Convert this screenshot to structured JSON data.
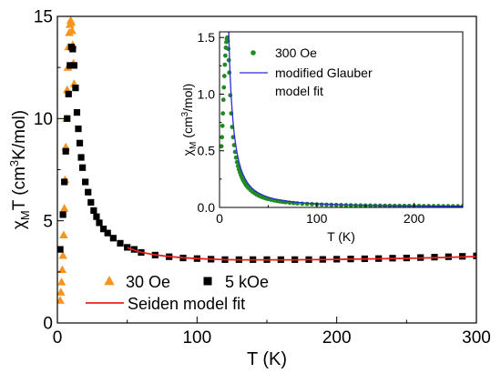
{
  "chart_data": [
    {
      "type": "scatter",
      "role": "main",
      "xlabel": "T (K)",
      "ylabel_parts": {
        "pre": "χ",
        "sub": "M",
        "mid": "T (cm",
        "sup": "3",
        "post": "K/mol)"
      },
      "xlim": [
        0,
        300
      ],
      "ylim": [
        0,
        15
      ],
      "xticks": [
        0,
        100,
        200,
        300
      ],
      "yticks": [
        0,
        5,
        10,
        15
      ],
      "grid": false,
      "legend_position": "bottom-left",
      "series": [
        {
          "name": "30 Oe",
          "marker": "triangle",
          "color": "#f7941d",
          "x": [
            2.0,
            2.5,
            3.0,
            3.5,
            4.0,
            4.5,
            5.0,
            5.5,
            6.0,
            6.5,
            7.0,
            7.5,
            8.0,
            8.5,
            9.0,
            9.5,
            10.0,
            10.5,
            11.0,
            11.5,
            12.0
          ],
          "y": [
            1.1,
            1.5,
            2.0,
            2.6,
            3.3,
            4.3,
            5.6,
            7.0,
            8.6,
            10.0,
            11.4,
            12.5,
            13.5,
            14.2,
            14.6,
            14.8,
            14.7,
            14.3,
            13.6,
            12.7,
            11.7
          ]
        },
        {
          "name": "5 kOe",
          "marker": "square",
          "color": "#000000",
          "x": [
            2,
            4,
            5,
            6,
            7,
            8,
            9,
            10,
            11,
            12,
            13,
            14,
            15,
            16,
            17,
            18,
            20,
            22,
            24,
            26,
            28,
            30,
            33,
            36,
            40,
            45,
            50,
            55,
            60,
            70,
            80,
            90,
            100,
            110,
            120,
            130,
            140,
            150,
            160,
            170,
            180,
            190,
            200,
            210,
            220,
            230,
            240,
            250,
            260,
            270,
            280,
            290,
            300
          ],
          "y": [
            3.6,
            5.3,
            6.9,
            8.4,
            10.0,
            11.2,
            12.6,
            13.5,
            13.4,
            12.6,
            11.5,
            10.3,
            9.5,
            8.8,
            8.1,
            7.6,
            6.9,
            6.4,
            5.9,
            5.5,
            5.2,
            4.9,
            4.6,
            4.4,
            4.15,
            3.9,
            3.7,
            3.6,
            3.45,
            3.32,
            3.24,
            3.18,
            3.15,
            3.12,
            3.1,
            3.1,
            3.1,
            3.1,
            3.1,
            3.1,
            3.1,
            3.11,
            3.12,
            3.13,
            3.14,
            3.15,
            3.17,
            3.18,
            3.2,
            3.22,
            3.24,
            3.26,
            3.28
          ]
        },
        {
          "name": "Seiden model fit",
          "marker": "line",
          "color": "#e8201c",
          "x": [
            50,
            60,
            70,
            80,
            90,
            100,
            110,
            120,
            130,
            140,
            150,
            160,
            170,
            180,
            190,
            200,
            210,
            220,
            230,
            240,
            250,
            260,
            270,
            280,
            290,
            300
          ],
          "y": [
            3.68,
            3.46,
            3.33,
            3.25,
            3.19,
            3.15,
            3.12,
            3.1,
            3.09,
            3.09,
            3.09,
            3.09,
            3.09,
            3.1,
            3.1,
            3.11,
            3.12,
            3.13,
            3.14,
            3.15,
            3.16,
            3.18,
            3.19,
            3.21,
            3.23,
            3.25
          ]
        }
      ]
    },
    {
      "type": "scatter",
      "role": "inset",
      "xlabel": "T (K)",
      "ylabel_parts": {
        "pre": "χ",
        "sub": "M",
        "mid": " (cm",
        "sup": "3",
        "post": "/mol)"
      },
      "xlim": [
        0,
        250
      ],
      "ylim": [
        0,
        1.55
      ],
      "xticks": [
        0,
        100,
        200
      ],
      "yticks": [
        0.0,
        0.5,
        1.0,
        1.5
      ],
      "ytick_labels": [
        "0.0",
        "0.5",
        "1.0",
        "1.5"
      ],
      "grid": false,
      "legend_position": "top-right",
      "series": [
        {
          "name": "300 Oe",
          "marker": "circle",
          "color": "#1e8c1e",
          "x": [
            2,
            2.5,
            3,
            3.5,
            4,
            4.5,
            5,
            5.5,
            6,
            6.5,
            7,
            7.5,
            8,
            8.5,
            9,
            9.5,
            10,
            11,
            12,
            13,
            14,
            15,
            16,
            17,
            18,
            19,
            20,
            21,
            22,
            23,
            24,
            25,
            26,
            27,
            28,
            29,
            30,
            32,
            34,
            36,
            38,
            40,
            42,
            44,
            46,
            48,
            50,
            53,
            56,
            59,
            62,
            65,
            68,
            72,
            76,
            80,
            85,
            90,
            95,
            100,
            105,
            110,
            115,
            120,
            125,
            130,
            135,
            140,
            145,
            150,
            155,
            160,
            165,
            170,
            175,
            180,
            185,
            190,
            195,
            200,
            205,
            210,
            215,
            220,
            225,
            230,
            235,
            240,
            245,
            250
          ],
          "y": [
            0.54,
            0.62,
            0.72,
            0.83,
            0.95,
            1.06,
            1.16,
            1.26,
            1.34,
            1.41,
            1.46,
            1.49,
            1.5,
            1.47,
            1.4,
            1.3,
            1.19,
            0.99,
            0.83,
            0.71,
            0.62,
            0.55,
            0.49,
            0.44,
            0.4,
            0.365,
            0.335,
            0.31,
            0.285,
            0.265,
            0.245,
            0.23,
            0.215,
            0.2,
            0.19,
            0.18,
            0.17,
            0.152,
            0.138,
            0.126,
            0.115,
            0.106,
            0.098,
            0.091,
            0.085,
            0.079,
            0.074,
            0.068,
            0.062,
            0.057,
            0.053,
            0.049,
            0.046,
            0.042,
            0.039,
            0.036,
            0.033,
            0.031,
            0.029,
            0.027,
            0.025,
            0.024,
            0.023,
            0.022,
            0.021,
            0.02,
            0.019,
            0.018,
            0.0175,
            0.017,
            0.0165,
            0.016,
            0.0155,
            0.015,
            0.0145,
            0.014,
            0.0137,
            0.0134,
            0.0131,
            0.0128,
            0.0125,
            0.0122,
            0.012,
            0.0117,
            0.0115,
            0.0112,
            0.011,
            0.0108,
            0.0106,
            0.0104
          ]
        },
        {
          "name": "modified Glauber model fit",
          "legend_lines": [
            "modified Glauber",
            "model fit"
          ],
          "marker": "line",
          "color": "#2b2bd6",
          "x": [
            9.4,
            9.7,
            10,
            10.5,
            11,
            12,
            13,
            14,
            15,
            16,
            18,
            20,
            22,
            24,
            26,
            28,
            30,
            33,
            36,
            40,
            45,
            50,
            55,
            60,
            70,
            80,
            90,
            100,
            120,
            140,
            160,
            180,
            200,
            220,
            250
          ],
          "y": [
            1.6,
            1.47,
            1.38,
            1.26,
            1.15,
            0.98,
            0.85,
            0.74,
            0.66,
            0.59,
            0.48,
            0.4,
            0.34,
            0.295,
            0.258,
            0.228,
            0.203,
            0.174,
            0.151,
            0.128,
            0.107,
            0.091,
            0.079,
            0.069,
            0.055,
            0.045,
            0.038,
            0.033,
            0.025,
            0.02,
            0.017,
            0.0145,
            0.0126,
            0.0112,
            0.0095
          ]
        }
      ]
    }
  ]
}
